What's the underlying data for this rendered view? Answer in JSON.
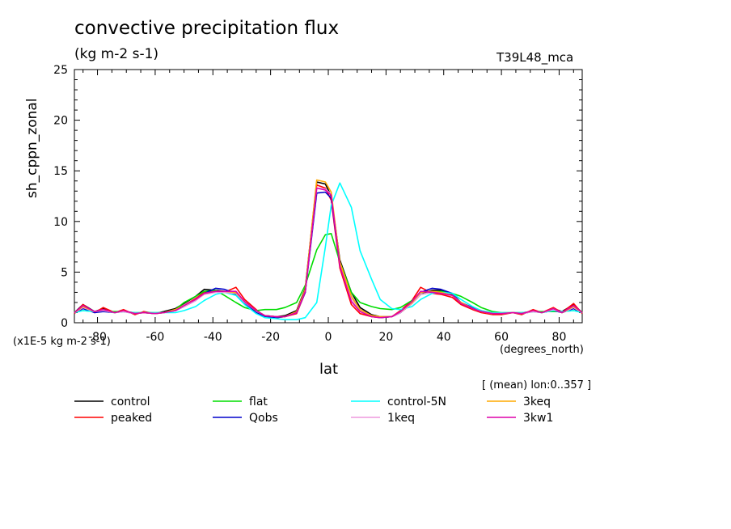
{
  "chart_data": {
    "type": "line",
    "title": "convective precipitation flux",
    "subtitle": "(kg m-2 s-1)",
    "run_label": "T39L48_mca",
    "ylabel": "sh_cppn_zonal",
    "xlabel": "lat",
    "x_units": "(degrees_north)",
    "scale_note": "(x1E-5 kg m-2 s-1)",
    "mean_note": "[ (mean) lon:0..357 ]",
    "xlim": [
      -88,
      88
    ],
    "ylim": [
      0,
      25
    ],
    "xticks": [
      -80,
      -60,
      -40,
      -20,
      0,
      20,
      40,
      60,
      80
    ],
    "yticks": [
      0,
      5,
      10,
      15,
      20,
      25
    ],
    "grid": false,
    "legend_position": "bottom",
    "x": [
      -88,
      -85,
      -81,
      -78,
      -74,
      -71,
      -67,
      -64,
      -60,
      -57,
      -53,
      -50,
      -46,
      -43,
      -39,
      -36,
      -32,
      -29,
      -25,
      -22,
      -18,
      -15,
      -11,
      -8,
      -4,
      -1,
      1,
      4,
      8,
      11,
      15,
      18,
      22,
      25,
      29,
      32,
      36,
      39,
      43,
      46,
      50,
      53,
      57,
      60,
      64,
      67,
      71,
      74,
      78,
      81,
      85,
      88
    ],
    "series": [
      {
        "name": "control",
        "color": "#000000",
        "values": [
          1.0,
          1.8,
          1.1,
          1.4,
          1.0,
          1.2,
          0.9,
          1.0,
          0.9,
          1.1,
          1.4,
          1.9,
          2.6,
          3.3,
          3.2,
          3.1,
          2.8,
          2.0,
          1.2,
          0.7,
          0.6,
          0.7,
          1.2,
          3.4,
          13.9,
          13.7,
          12.5,
          6.2,
          3.0,
          1.5,
          0.8,
          0.6,
          0.6,
          1.0,
          1.9,
          2.8,
          3.2,
          3.2,
          2.8,
          2.0,
          1.4,
          1.1,
          0.9,
          0.9,
          1.0,
          0.9,
          1.2,
          1.0,
          1.4,
          1.1,
          1.8,
          1.0
        ]
      },
      {
        "name": "peaked",
        "color": "#ff0000",
        "values": [
          0.9,
          1.8,
          1.0,
          1.5,
          1.0,
          1.3,
          0.8,
          1.1,
          0.9,
          1.0,
          1.3,
          1.7,
          2.4,
          3.0,
          3.1,
          3.0,
          3.5,
          2.3,
          1.3,
          0.6,
          0.5,
          0.6,
          0.9,
          3.0,
          13.6,
          13.3,
          12.1,
          5.4,
          1.8,
          0.9,
          0.6,
          0.5,
          0.6,
          1.2,
          2.2,
          3.5,
          2.9,
          2.8,
          2.5,
          1.8,
          1.3,
          1.0,
          0.8,
          0.8,
          1.0,
          0.8,
          1.3,
          1.0,
          1.5,
          1.0,
          1.9,
          0.9
        ]
      },
      {
        "name": "flat",
        "color": "#00dd00",
        "values": [
          1.1,
          1.2,
          1.1,
          1.1,
          1.1,
          1.1,
          1.0,
          1.0,
          1.0,
          1.0,
          1.3,
          2.0,
          2.6,
          3.1,
          3.2,
          2.7,
          2.0,
          1.5,
          1.2,
          1.3,
          1.3,
          1.5,
          2.0,
          3.7,
          7.2,
          8.7,
          8.8,
          6.0,
          3.0,
          2.0,
          1.6,
          1.4,
          1.3,
          1.5,
          2.2,
          2.8,
          3.0,
          3.1,
          2.9,
          2.6,
          2.0,
          1.5,
          1.1,
          1.0,
          1.0,
          1.0,
          1.1,
          1.1,
          1.1,
          1.1,
          1.2,
          1.1
        ]
      },
      {
        "name": "Qobs",
        "color": "#0000cc",
        "values": [
          1.0,
          1.4,
          1.0,
          1.1,
          1.0,
          1.1,
          0.9,
          1.0,
          0.9,
          1.0,
          1.2,
          1.6,
          2.2,
          2.9,
          3.4,
          3.3,
          2.9,
          1.9,
          1.0,
          0.6,
          0.5,
          0.6,
          1.0,
          3.0,
          12.8,
          12.9,
          12.3,
          5.7,
          2.6,
          1.3,
          0.7,
          0.5,
          0.6,
          1.0,
          2.0,
          3.0,
          3.4,
          3.3,
          2.9,
          2.0,
          1.5,
          1.2,
          0.9,
          0.9,
          1.0,
          0.9,
          1.1,
          1.0,
          1.2,
          1.0,
          1.4,
          1.0
        ]
      },
      {
        "name": "control-5N",
        "color": "#00ffff",
        "values": [
          1.0,
          1.2,
          1.1,
          1.2,
          1.0,
          1.1,
          1.0,
          1.0,
          1.0,
          1.0,
          1.0,
          1.2,
          1.6,
          2.2,
          2.8,
          3.0,
          2.7,
          1.8,
          0.9,
          0.5,
          0.4,
          0.3,
          0.3,
          0.5,
          2.0,
          7.5,
          11.6,
          13.8,
          11.4,
          7.1,
          4.3,
          2.3,
          1.4,
          1.3,
          1.6,
          2.3,
          2.9,
          3.0,
          2.9,
          2.3,
          1.6,
          1.2,
          1.0,
          1.0,
          1.0,
          1.0,
          1.1,
          1.0,
          1.2,
          1.1,
          1.2,
          1.0
        ]
      },
      {
        "name": "1keq",
        "color": "#ee99dd",
        "values": [
          1.0,
          1.5,
          1.1,
          1.2,
          1.0,
          1.1,
          0.9,
          1.0,
          0.9,
          1.0,
          1.2,
          1.6,
          2.2,
          2.8,
          3.0,
          3.0,
          2.9,
          2.0,
          1.2,
          0.7,
          0.6,
          0.6,
          1.0,
          3.1,
          13.3,
          13.2,
          12.7,
          5.8,
          2.4,
          1.2,
          0.7,
          0.6,
          0.6,
          1.0,
          1.9,
          2.8,
          3.0,
          2.9,
          2.7,
          2.0,
          1.4,
          1.1,
          0.9,
          0.9,
          1.0,
          0.9,
          1.1,
          1.0,
          1.3,
          1.0,
          1.5,
          1.0
        ]
      },
      {
        "name": "3keq",
        "color": "#ffaa00",
        "values": [
          1.0,
          1.6,
          1.1,
          1.3,
          1.0,
          1.2,
          0.9,
          1.0,
          0.9,
          1.0,
          1.3,
          1.7,
          2.3,
          2.9,
          3.1,
          3.1,
          3.0,
          2.1,
          1.2,
          0.7,
          0.6,
          0.6,
          1.1,
          3.3,
          14.1,
          13.9,
          12.9,
          6.0,
          2.6,
          1.3,
          0.7,
          0.6,
          0.6,
          1.1,
          2.0,
          3.0,
          3.1,
          3.0,
          2.7,
          2.0,
          1.4,
          1.1,
          0.9,
          0.9,
          1.0,
          0.9,
          1.2,
          1.0,
          1.4,
          1.0,
          1.6,
          1.0
        ]
      },
      {
        "name": "3kw1",
        "color": "#dd00aa",
        "values": [
          1.0,
          1.7,
          1.1,
          1.3,
          1.0,
          1.2,
          0.9,
          1.0,
          0.9,
          1.0,
          1.2,
          1.7,
          2.3,
          2.9,
          3.1,
          3.1,
          3.1,
          2.1,
          1.2,
          0.7,
          0.6,
          0.6,
          1.0,
          3.1,
          13.3,
          13.1,
          12.6,
          5.6,
          2.1,
          1.1,
          0.6,
          0.5,
          0.6,
          1.1,
          2.1,
          3.1,
          3.0,
          2.9,
          2.7,
          1.9,
          1.4,
          1.1,
          0.9,
          0.9,
          1.0,
          0.9,
          1.2,
          1.0,
          1.4,
          1.0,
          1.7,
          1.0
        ]
      }
    ],
    "legend_order": [
      "control",
      "flat",
      "control-5N",
      "3keq",
      "peaked",
      "Qobs",
      "1keq",
      "3kw1"
    ]
  }
}
